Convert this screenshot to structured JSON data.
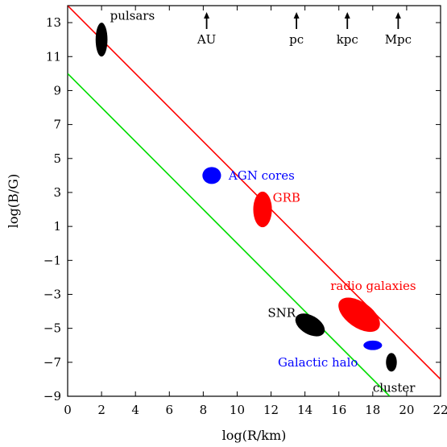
{
  "chart_data": {
    "type": "scatter",
    "title": "",
    "xlabel": "log(R/km)",
    "ylabel": "log(B/G)",
    "xlim": [
      0,
      22
    ],
    "ylim": [
      -9,
      14
    ],
    "xticks": [
      0,
      2,
      4,
      6,
      8,
      10,
      12,
      14,
      16,
      18,
      20,
      22
    ],
    "xtick_labels": [
      "0",
      "2",
      "4",
      "6",
      "8",
      "10",
      "12",
      "14",
      "16",
      "18",
      "20",
      "22"
    ],
    "yticks": [
      -9,
      -7,
      -5,
      -3,
      -1,
      1,
      3,
      5,
      7,
      9,
      11,
      13
    ],
    "ytick_labels": [
      "−9",
      "−7",
      "−5",
      "−3",
      "−1",
      "1",
      "3",
      "5",
      "7",
      "9",
      "11",
      "13"
    ],
    "grid": false,
    "legend": "none",
    "lines": [
      {
        "color": "#ff0000",
        "points": [
          [
            0,
            14
          ],
          [
            22,
            -8
          ]
        ]
      },
      {
        "color": "#00dd00",
        "points": [
          [
            0,
            10
          ],
          [
            19,
            -9
          ]
        ]
      }
    ],
    "scale_markers": [
      {
        "label": "AU",
        "x": 8.2
      },
      {
        "label": "pc",
        "x": 13.5
      },
      {
        "label": "kpc",
        "x": 16.5
      },
      {
        "label": "Mpc",
        "x": 19.5
      }
    ],
    "objects": [
      {
        "label": "pulsars",
        "x": 2.0,
        "y": 12.0,
        "rx": 0.35,
        "ry": 1.0,
        "rotate": 0,
        "color": "#000000",
        "label_color": "#000000",
        "label_x": 2.5,
        "label_y": 13.4
      },
      {
        "label": "AGN cores",
        "x": 8.5,
        "y": 4.0,
        "rx": 0.55,
        "ry": 0.5,
        "rotate": 0,
        "color": "#0000ff",
        "label_color": "#0000ff",
        "label_x": 9.5,
        "label_y": 4.0
      },
      {
        "label": "GRB",
        "x": 11.5,
        "y": 2.0,
        "rx": 0.55,
        "ry": 1.05,
        "rotate": 0,
        "color": "#ff0000",
        "label_color": "#ff0000",
        "label_x": 12.1,
        "label_y": 2.7
      },
      {
        "label": "radio galaxies",
        "x": 17.2,
        "y": -4.2,
        "rx": 1.4,
        "ry": 0.75,
        "rotate": 35,
        "color": "#ff0000",
        "label_color": "#ff0000",
        "label_x": 15.5,
        "label_y": -2.5
      },
      {
        "label": "SNR",
        "x": 14.3,
        "y": -4.8,
        "rx": 0.95,
        "ry": 0.55,
        "rotate": 30,
        "color": "#000000",
        "label_color": "#000000",
        "label_x": 11.8,
        "label_y": -4.1
      },
      {
        "label": "Galactic halo",
        "x": 18.0,
        "y": -6.0,
        "rx": 0.55,
        "ry": 0.28,
        "rotate": 0,
        "color": "#0000ff",
        "label_color": "#0000ff",
        "label_x": 12.4,
        "label_y": -7.0
      },
      {
        "label": "cluster",
        "x": 19.1,
        "y": -7.0,
        "rx": 0.32,
        "ry": 0.55,
        "rotate": 0,
        "color": "#000000",
        "label_color": "#000000",
        "label_x": 18.0,
        "label_y": -8.5
      }
    ]
  }
}
